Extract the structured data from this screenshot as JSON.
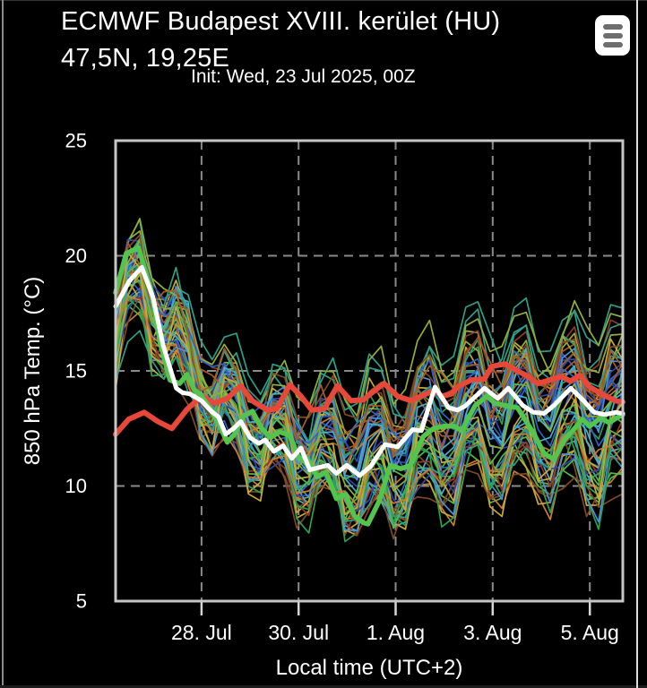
{
  "chart_data": {
    "type": "line",
    "title": "ECMWF Budapest XVIII. kerület (HU)",
    "subtitle": "47,5N, 19,25E",
    "init_time": "Init: Wed, 23 Jul 2025, 00Z",
    "xlabel": "Local time (UTC+2)",
    "ylabel": "850 hPa Temp. (°C)",
    "background": "#000000",
    "grid_color": "#8a8a8a",
    "border_color": "#c6c6c6",
    "tick_mark_color": "#d6d6d6",
    "axes": {
      "x": {
        "t_unit": "days (0 = 26 Jul 00:00 local time)",
        "domain_days": [
          0.23,
          10.68
        ],
        "ticks": [
          {
            "t": 2,
            "label": "28. Jul"
          },
          {
            "t": 4,
            "label": "30. Jul"
          },
          {
            "t": 6,
            "label": "1. Aug"
          },
          {
            "t": 8,
            "label": "3. Aug"
          },
          {
            "t": 10,
            "label": "5. Aug"
          }
        ]
      },
      "y": {
        "domain": [
          5,
          25
        ],
        "ticks": [
          5,
          10,
          15,
          20,
          25
        ],
        "gridlines": [
          10,
          15,
          20
        ]
      }
    },
    "series": [
      {
        "name": "thick-red-line",
        "color": "#e8483a",
        "width": 6,
        "points": [
          [
            0.23,
            12.25
          ],
          [
            0.5,
            12.9
          ],
          [
            0.82,
            13.2
          ],
          [
            1.1,
            12.8
          ],
          [
            1.39,
            12.5
          ],
          [
            1.71,
            13.35
          ],
          [
            2.0,
            13.9
          ],
          [
            2.26,
            13.6
          ],
          [
            2.53,
            13.8
          ],
          [
            2.81,
            14.35
          ],
          [
            3.05,
            13.7
          ],
          [
            3.36,
            13.3
          ],
          [
            3.55,
            13.35
          ],
          [
            3.82,
            14.4
          ],
          [
            4.05,
            13.9
          ],
          [
            4.27,
            13.3
          ],
          [
            4.53,
            13.35
          ],
          [
            4.8,
            14.35
          ],
          [
            5.08,
            13.7
          ],
          [
            5.34,
            13.75
          ],
          [
            5.54,
            14.1
          ],
          [
            5.76,
            14.45
          ],
          [
            6.04,
            13.9
          ],
          [
            6.32,
            13.7
          ],
          [
            6.63,
            14.0
          ],
          [
            6.81,
            14.15
          ],
          [
            6.95,
            13.9
          ],
          [
            7.15,
            14.0
          ],
          [
            7.27,
            14.3
          ],
          [
            7.55,
            14.6
          ],
          [
            7.83,
            14.65
          ],
          [
            7.98,
            15.2
          ],
          [
            8.25,
            15.3
          ],
          [
            8.51,
            15.0
          ],
          [
            8.69,
            14.8
          ],
          [
            8.93,
            14.45
          ],
          [
            9.17,
            14.6
          ],
          [
            9.42,
            14.75
          ],
          [
            9.61,
            14.55
          ],
          [
            9.79,
            14.8
          ],
          [
            10.0,
            14.3
          ],
          [
            10.28,
            13.95
          ],
          [
            10.53,
            13.7
          ],
          [
            10.68,
            13.65
          ]
        ]
      },
      {
        "name": "thick-green-line",
        "color": "#53c44e",
        "width": 5.5,
        "points": [
          [
            0.23,
            18.4
          ],
          [
            0.45,
            20.1
          ],
          [
            0.7,
            20.35
          ],
          [
            0.95,
            18.6
          ],
          [
            1.15,
            16.2
          ],
          [
            1.35,
            14.6
          ],
          [
            1.55,
            14.45
          ],
          [
            1.7,
            14.85
          ],
          [
            1.85,
            14.2
          ],
          [
            2.0,
            13.9
          ],
          [
            2.2,
            13.3
          ],
          [
            2.4,
            12.5
          ],
          [
            2.53,
            11.9
          ],
          [
            2.68,
            12.25
          ],
          [
            2.87,
            13.05
          ],
          [
            3.05,
            13.25
          ],
          [
            3.24,
            12.5
          ],
          [
            3.42,
            12.1
          ],
          [
            3.61,
            12.35
          ],
          [
            3.82,
            12.2
          ],
          [
            4.01,
            11.2
          ],
          [
            4.19,
            11.15
          ],
          [
            4.38,
            10.4
          ],
          [
            4.56,
            10.6
          ],
          [
            4.78,
            9.45
          ],
          [
            4.97,
            9.65
          ],
          [
            5.15,
            8.7
          ],
          [
            5.34,
            8.4
          ],
          [
            5.43,
            8.35
          ],
          [
            5.65,
            9.3
          ],
          [
            5.89,
            10.9
          ],
          [
            6.11,
            10.75
          ],
          [
            6.31,
            10.9
          ],
          [
            6.57,
            12.15
          ],
          [
            6.78,
            12.5
          ],
          [
            7.0,
            12.6
          ],
          [
            7.21,
            12.6
          ],
          [
            7.36,
            12.4
          ],
          [
            7.64,
            13.5
          ],
          [
            7.88,
            13.9
          ],
          [
            8.05,
            13.6
          ],
          [
            8.25,
            13.5
          ],
          [
            8.51,
            13.4
          ],
          [
            8.84,
            12.3
          ],
          [
            9.06,
            11.4
          ],
          [
            9.26,
            11.15
          ],
          [
            9.48,
            12.0
          ],
          [
            9.85,
            12.9
          ],
          [
            10.0,
            12.6
          ],
          [
            10.22,
            12.95
          ],
          [
            10.4,
            12.75
          ],
          [
            10.55,
            12.95
          ],
          [
            10.68,
            13.1
          ]
        ]
      },
      {
        "name": "thick-white-line",
        "color": "#ffffff",
        "width": 5,
        "points": [
          [
            0.23,
            17.8
          ],
          [
            0.51,
            18.9
          ],
          [
            0.77,
            19.5
          ],
          [
            1.0,
            18.2
          ],
          [
            1.21,
            16.1
          ],
          [
            1.48,
            14.25
          ],
          [
            1.61,
            14.05
          ],
          [
            1.76,
            14.0
          ],
          [
            2.0,
            13.7
          ],
          [
            2.2,
            13.25
          ],
          [
            2.35,
            13.0
          ],
          [
            2.5,
            12.25
          ],
          [
            2.66,
            12.5
          ],
          [
            2.81,
            12.8
          ],
          [
            3.0,
            12.1
          ],
          [
            3.18,
            11.85
          ],
          [
            3.31,
            12.0
          ],
          [
            3.49,
            11.5
          ],
          [
            3.68,
            11.75
          ],
          [
            3.86,
            11.2
          ],
          [
            4.05,
            11.65
          ],
          [
            4.23,
            10.7
          ],
          [
            4.41,
            10.8
          ],
          [
            4.6,
            10.9
          ],
          [
            4.78,
            10.55
          ],
          [
            4.99,
            10.9
          ],
          [
            5.26,
            10.45
          ],
          [
            5.48,
            10.85
          ],
          [
            5.78,
            11.8
          ],
          [
            6.04,
            11.7
          ],
          [
            6.35,
            12.45
          ],
          [
            6.53,
            12.4
          ],
          [
            6.81,
            14.3
          ],
          [
            7.09,
            13.4
          ],
          [
            7.27,
            13.3
          ],
          [
            7.42,
            13.45
          ],
          [
            7.83,
            14.25
          ],
          [
            8.1,
            13.8
          ],
          [
            8.32,
            14.25
          ],
          [
            8.62,
            13.5
          ],
          [
            8.84,
            13.2
          ],
          [
            9.06,
            13.15
          ],
          [
            9.26,
            13.5
          ],
          [
            9.61,
            14.25
          ],
          [
            9.85,
            13.75
          ],
          [
            10.09,
            13.2
          ],
          [
            10.31,
            13.1
          ],
          [
            10.53,
            13.2
          ],
          [
            10.68,
            13.15
          ]
        ]
      }
    ],
    "ensemble": {
      "description": "thin ensemble member lines, procedurally regenerated from envelope",
      "count": 50,
      "stroke_width": 1.7,
      "seed": 42,
      "palette": [
        "#2b49a8",
        "#2f63c6",
        "#4d8fd1",
        "#45b0c9",
        "#2f9e86",
        "#2f9e4f",
        "#55b84d",
        "#93ad3a",
        "#c8a93c",
        "#c67f31",
        "#a55c28",
        "#7e4a23",
        "#8f3a26"
      ],
      "base_curve": [
        [
          0.23,
          17.2
        ],
        [
          0.6,
          20.2
        ],
        [
          1.1,
          17.0
        ],
        [
          1.6,
          14.6
        ],
        [
          2.1,
          13.5
        ],
        [
          2.6,
          12.7
        ],
        [
          3.1,
          12.3
        ],
        [
          3.6,
          12.0
        ],
        [
          4.1,
          11.6
        ],
        [
          4.6,
          11.3
        ],
        [
          5.1,
          11.2
        ],
        [
          5.6,
          11.5
        ],
        [
          6.1,
          12.1
        ],
        [
          6.6,
          12.6
        ],
        [
          7.1,
          13.1
        ],
        [
          7.6,
          13.4
        ],
        [
          8.1,
          13.5
        ],
        [
          8.6,
          13.4
        ],
        [
          9.1,
          13.4
        ],
        [
          9.6,
          13.3
        ],
        [
          10.1,
          13.2
        ],
        [
          10.68,
          13.1
        ]
      ],
      "spread_curve": [
        [
          0.23,
          1.5
        ],
        [
          1.0,
          1.6
        ],
        [
          2.0,
          1.3
        ],
        [
          3.0,
          1.8
        ],
        [
          4.0,
          2.2
        ],
        [
          5.0,
          2.6
        ],
        [
          6.0,
          3.0
        ],
        [
          7.0,
          3.2
        ],
        [
          8.0,
          3.3
        ],
        [
          9.0,
          3.5
        ],
        [
          10.68,
          3.6
        ]
      ],
      "diurnal": {
        "amp_min": 0.6,
        "amp_max": 1.9,
        "peak_day_fraction": 0.58
      },
      "value_range": [
        6.2,
        24.0
      ]
    }
  },
  "ui": {
    "menu_icon": "hamburger-icon",
    "scrollbar_color": "#dedede"
  }
}
